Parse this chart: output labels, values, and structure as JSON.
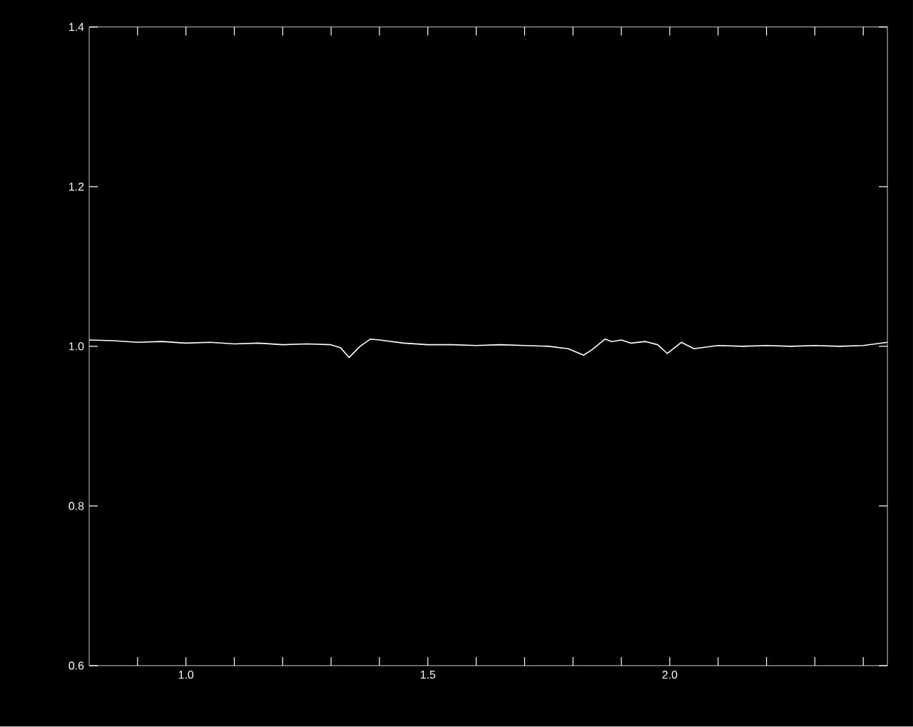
{
  "chart_data": {
    "type": "line",
    "color": "#ffffff",
    "x": [
      0.8,
      0.85,
      0.9,
      0.95,
      1.0,
      1.05,
      1.1,
      1.15,
      1.2,
      1.25,
      1.3,
      1.32,
      1.337,
      1.36,
      1.381,
      1.4,
      1.45,
      1.5,
      1.55,
      1.6,
      1.65,
      1.7,
      1.75,
      1.79,
      1.822,
      1.84,
      1.866,
      1.88,
      1.9,
      1.92,
      1.95,
      1.975,
      1.995,
      2.024,
      2.05,
      2.1,
      2.15,
      2.2,
      2.25,
      2.3,
      2.35,
      2.4,
      2.45
    ],
    "values": [
      1.008,
      1.007,
      1.005,
      1.006,
      1.004,
      1.005,
      1.003,
      1.004,
      1.002,
      1.003,
      1.002,
      0.998,
      0.986,
      1.0,
      1.009,
      1.008,
      1.004,
      1.002,
      1.002,
      1.001,
      1.002,
      1.001,
      1.0,
      0.997,
      0.989,
      0.996,
      1.009,
      1.006,
      1.008,
      1.004,
      1.006,
      1.002,
      0.991,
      1.005,
      0.997,
      1.001,
      1.0,
      1.001,
      1.0,
      1.001,
      1.0,
      1.001,
      1.005
    ],
    "xlim": [
      0.8,
      2.45
    ],
    "ylim": [
      0.6,
      1.4
    ],
    "xticks": [
      {
        "value": 0.9,
        "label": null
      },
      {
        "value": 1.0,
        "label": "1.0"
      },
      {
        "value": 1.1,
        "label": null
      },
      {
        "value": 1.2,
        "label": null
      },
      {
        "value": 1.3,
        "label": null
      },
      {
        "value": 1.4,
        "label": null
      },
      {
        "value": 1.5,
        "label": "1.5"
      },
      {
        "value": 1.6,
        "label": null
      },
      {
        "value": 1.7,
        "label": null
      },
      {
        "value": 1.8,
        "label": null
      },
      {
        "value": 1.9,
        "label": null
      },
      {
        "value": 2.0,
        "label": "2.0"
      },
      {
        "value": 2.1,
        "label": null
      },
      {
        "value": 2.2,
        "label": null
      },
      {
        "value": 2.3,
        "label": null
      },
      {
        "value": 2.4,
        "label": null
      }
    ],
    "yticks": [
      {
        "value": 0.6,
        "label": "0.6"
      },
      {
        "value": 0.8,
        "label": "0.8"
      },
      {
        "value": 1.0,
        "label": "1.0"
      },
      {
        "value": 1.2,
        "label": "1.2"
      },
      {
        "value": 1.4,
        "label": "1.4"
      }
    ]
  }
}
